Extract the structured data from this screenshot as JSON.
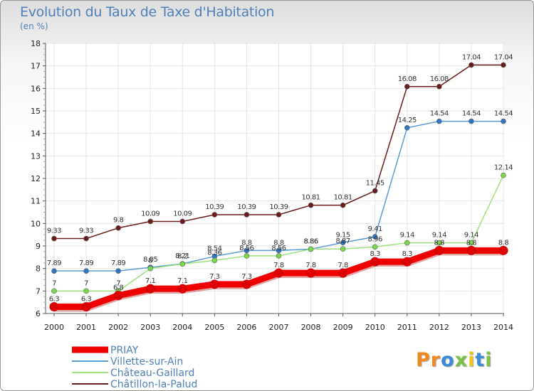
{
  "title": "Evolution du Taux de Taxe d'Habitation",
  "unit_label": "(en %)",
  "logo": {
    "text": "Proxiti",
    "letters": [
      {
        "ch": "P",
        "color": "#f08a1c"
      },
      {
        "ch": "r",
        "color": "#f08a1c"
      },
      {
        "ch": "o",
        "color": "#3a8ad8"
      },
      {
        "ch": "x",
        "color": "#7bc142"
      },
      {
        "ch": "i",
        "color": "#f0c41c"
      },
      {
        "ch": "t",
        "color": "#3a8ad8"
      },
      {
        "ch": "i",
        "color": "#7bc142"
      }
    ]
  },
  "chart_data": {
    "type": "line",
    "title": "Evolution du Taux de Taxe d'Habitation",
    "ylabel": "(en %)",
    "xlabel": "",
    "ylim": [
      6,
      18
    ],
    "yticks": [
      6,
      7,
      8,
      9,
      10,
      11,
      12,
      13,
      14,
      15,
      16,
      17,
      18
    ],
    "grid": true,
    "legend_position": "bottom-left",
    "x": [
      "2000",
      "2001",
      "2002",
      "2003",
      "2004",
      "2005",
      "2006",
      "2007",
      "2008",
      "2009",
      "2010",
      "2011",
      "2012",
      "2013",
      "2014"
    ],
    "series": [
      {
        "name": "Châtillon-la-Palud",
        "color": "#6b1a1a",
        "point_color": "#6b1a1a",
        "values": [
          9.33,
          9.33,
          9.8,
          10.09,
          10.09,
          10.39,
          10.39,
          10.39,
          10.81,
          10.81,
          11.45,
          16.08,
          16.08,
          17.04,
          17.04
        ],
        "labels": [
          "9.33",
          "9.33",
          "9.8",
          "10.09",
          "10.09",
          "10.39",
          "10.39",
          "10.39",
          "10.81",
          "10.81",
          "11.45",
          "16.08",
          "16.08",
          "17.04",
          "17.04"
        ]
      },
      {
        "name": "Villette-sur-Ain",
        "color": "#5b9bd5",
        "point_color": "#2f75c0",
        "values": [
          7.89,
          7.89,
          7.89,
          8.05,
          8.21,
          8.54,
          8.8,
          8.8,
          8.86,
          9.15,
          9.41,
          14.25,
          14.54,
          14.54,
          14.54
        ],
        "labels": [
          "7.89",
          "7.89",
          "7.89",
          "8.05",
          "8.21",
          "8.54",
          "8.8",
          "8.8",
          "8.86",
          "9.15",
          "9.41",
          "14.25",
          "14.54",
          "14.54",
          "14.54"
        ]
      },
      {
        "name": "Château-Gaillard",
        "color": "#9be07a",
        "point_color": "#78d84a",
        "values": [
          7,
          7,
          7,
          8,
          8.2,
          8.36,
          8.56,
          8.56,
          8.86,
          8.87,
          8.96,
          9.14,
          9.14,
          9.14,
          12.14
        ],
        "labels": [
          "7",
          "7",
          "7",
          "8",
          "8.2",
          "8.36",
          "8.56",
          "8.56",
          "8.86",
          "8.87",
          "8.96",
          "9.14",
          "9.14",
          "9.14",
          "12.14"
        ]
      },
      {
        "name": "PRIAY",
        "color": "#ee0000",
        "point_color": "#dd0000",
        "values": [
          6.3,
          6.3,
          6.8,
          7.1,
          7.1,
          7.3,
          7.3,
          7.8,
          7.8,
          7.8,
          8.3,
          8.3,
          8.8,
          8.8,
          8.8
        ],
        "labels": [
          "6.3",
          "6.3",
          "6.8",
          "7.1",
          "7.1",
          "7.3",
          "7.3",
          "7.8",
          "7.8",
          "7.8",
          "8.3",
          "8.3",
          "8.8",
          "8.8",
          "8.8"
        ]
      }
    ],
    "legend": [
      "PRIAY",
      "Villette-sur-Ain",
      "Château-Gaillard",
      "Châtillon-la-Palud"
    ]
  }
}
